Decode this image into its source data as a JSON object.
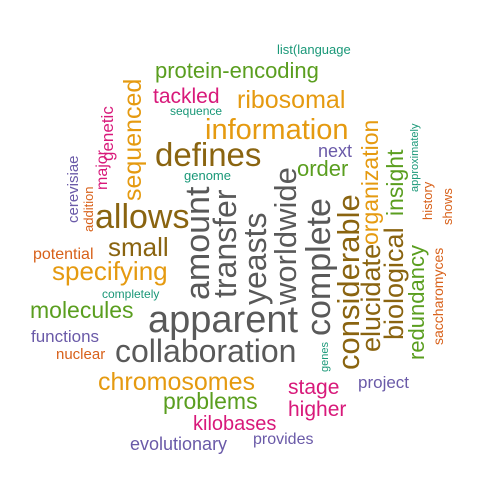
{
  "palette": {
    "green": "#5a9e1f",
    "orange": "#e59a10",
    "brown": "#8a6410",
    "magenta": "#d8197a",
    "purple": "#6a5aa8",
    "teal": "#1a9878",
    "dark_orange": "#d8611a",
    "gray": "#595959"
  },
  "words": [
    {
      "text": "list(language",
      "color": "teal"
    },
    {
      "text": "protein-encoding",
      "color": "green"
    },
    {
      "text": "tackled",
      "color": "magenta"
    },
    {
      "text": "sequence",
      "color": "teal"
    },
    {
      "text": "ribosomal",
      "color": "orange"
    },
    {
      "text": "information",
      "color": "orange"
    },
    {
      "text": "defines",
      "color": "brown"
    },
    {
      "text": "next",
      "color": "purple"
    },
    {
      "text": "order",
      "color": "green"
    },
    {
      "text": "genome",
      "color": "teal"
    },
    {
      "text": "allows",
      "color": "brown"
    },
    {
      "text": "small",
      "color": "brown"
    },
    {
      "text": "potential",
      "color": "dark_orange"
    },
    {
      "text": "specifying",
      "color": "orange"
    },
    {
      "text": "completely",
      "color": "teal"
    },
    {
      "text": "molecules",
      "color": "green"
    },
    {
      "text": "apparent",
      "color": "gray"
    },
    {
      "text": "functions",
      "color": "purple"
    },
    {
      "text": "nuclear",
      "color": "dark_orange"
    },
    {
      "text": "collaboration",
      "color": "gray"
    },
    {
      "text": "chromosomes",
      "color": "orange"
    },
    {
      "text": "stage",
      "color": "magenta"
    },
    {
      "text": "project",
      "color": "purple"
    },
    {
      "text": "problems",
      "color": "green"
    },
    {
      "text": "higher",
      "color": "magenta"
    },
    {
      "text": "kilobases",
      "color": "magenta"
    },
    {
      "text": "evolutionary",
      "color": "purple"
    },
    {
      "text": "provides",
      "color": "purple"
    },
    {
      "text": "sequenced",
      "color": "orange"
    },
    {
      "text": "genetic",
      "color": "magenta"
    },
    {
      "text": "major",
      "color": "magenta"
    },
    {
      "text": "cerevisiae",
      "color": "purple"
    },
    {
      "text": "addition",
      "color": "dark_orange"
    },
    {
      "text": "amount",
      "color": "gray"
    },
    {
      "text": "transfer",
      "color": "gray"
    },
    {
      "text": "yeasts",
      "color": "gray"
    },
    {
      "text": "worldwide",
      "color": "gray"
    },
    {
      "text": "complete",
      "color": "gray"
    },
    {
      "text": "considerable",
      "color": "brown"
    },
    {
      "text": "elucidate",
      "color": "brown"
    },
    {
      "text": "organization",
      "color": "orange"
    },
    {
      "text": "biological",
      "color": "brown"
    },
    {
      "text": "insight",
      "color": "green"
    },
    {
      "text": "redundancy",
      "color": "green"
    },
    {
      "text": "approximately",
      "color": "teal"
    },
    {
      "text": "history",
      "color": "dark_orange"
    },
    {
      "text": "shows",
      "color": "dark_orange"
    },
    {
      "text": "saccharomyces",
      "color": "dark_orange"
    },
    {
      "text": "genes",
      "color": "teal"
    }
  ]
}
